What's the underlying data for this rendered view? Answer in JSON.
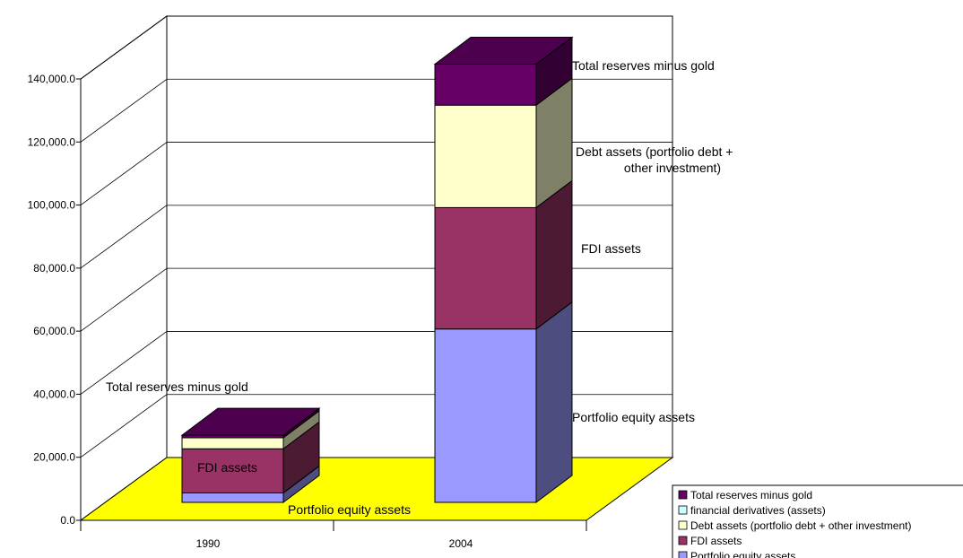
{
  "chart_data": {
    "type": "bar",
    "stacked": true,
    "three_d": true,
    "categories": [
      "1990",
      "2004"
    ],
    "ylim": [
      0,
      140000
    ],
    "y_ticks": [
      "0.0",
      "20,000.0",
      "40,000.0",
      "60,000.0",
      "80,000.0",
      "100,000.0",
      "120,000.0",
      "140,000.0"
    ],
    "grid": true,
    "floor_color": "#ffff00",
    "series": [
      {
        "name": "Portfolio equity assets",
        "color": "#9999ff",
        "values": [
          3000,
          55000
        ]
      },
      {
        "name": "FDI assets",
        "color": "#993366",
        "values": [
          14000,
          38500
        ]
      },
      {
        "name": "Debt assets (portfolio debt + other investment)",
        "color": "#ffffcc",
        "values": [
          3500,
          32500
        ]
      },
      {
        "name": "financial derivatives (assets)",
        "color": "#ccffff",
        "values": [
          0,
          0
        ]
      },
      {
        "name": "Total reserves minus gold",
        "color": "#660066",
        "values": [
          800,
          13000
        ]
      }
    ],
    "legend": {
      "placement": "bottom-right",
      "order": [
        "Total reserves minus gold",
        "financial derivatives (assets)",
        "Debt assets (portfolio debt + other investment)",
        "FDI assets",
        "Portfolio equity assets"
      ]
    },
    "annotations": [
      {
        "text": "Total reserves minus gold"
      },
      {
        "text": "FDI assets"
      },
      {
        "text": "Portfolio equity assets"
      },
      {
        "text": "Total reserves minus gold"
      },
      {
        "text": "Debt assets (portfolio debt +"
      },
      {
        "text": "other investment)"
      },
      {
        "text": "FDI assets"
      },
      {
        "text": "Portfolio equity assets"
      }
    ]
  }
}
